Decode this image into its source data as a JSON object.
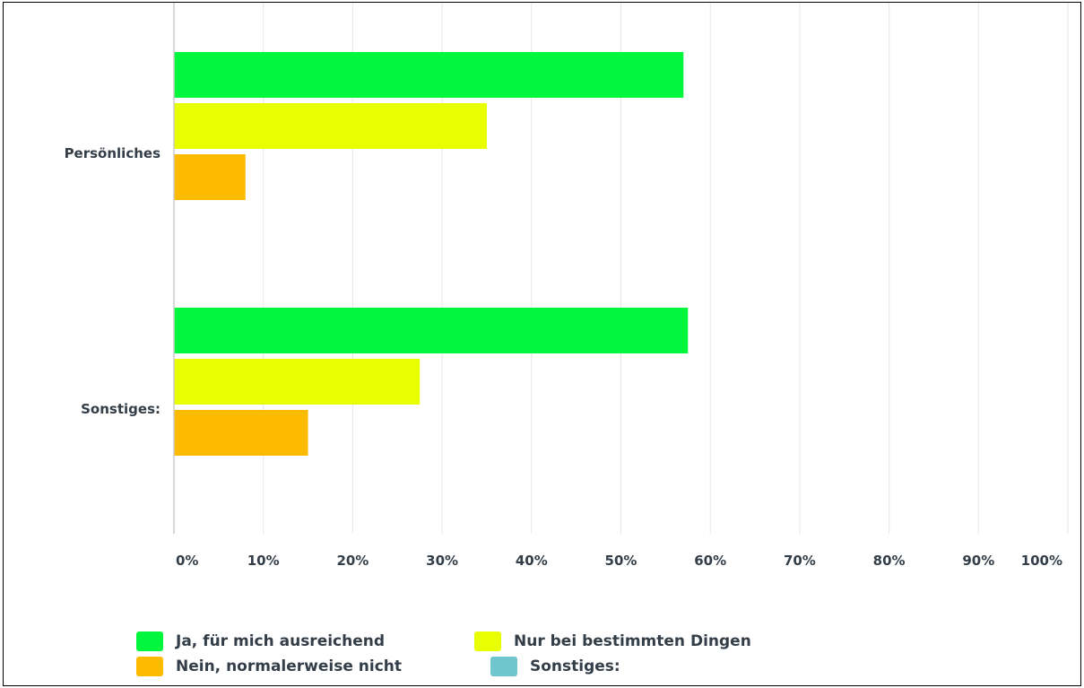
{
  "chart_data": {
    "type": "bar",
    "orientation": "horizontal",
    "categories": [
      "Persönliches",
      "Sonstiges:"
    ],
    "series": [
      {
        "name": "Ja, für mich ausreichend",
        "color": "#00f73e",
        "values": [
          57,
          57.5
        ]
      },
      {
        "name": "Nur bei bestimmten Dingen",
        "color": "#e7ff00",
        "values": [
          35,
          27.5
        ]
      },
      {
        "name": "Nein, normalerweise nicht",
        "color": "#fdbb00",
        "values": [
          8,
          15
        ]
      },
      {
        "name": "Sonstiges:",
        "color": "#6fc6cc",
        "values": [
          0,
          0
        ]
      }
    ],
    "x_ticks": [
      "0%",
      "10%",
      "20%",
      "30%",
      "40%",
      "50%",
      "60%",
      "70%",
      "80%",
      "90%",
      "100%"
    ],
    "xlim": [
      0,
      100
    ],
    "grid": true,
    "legend_position": "bottom"
  }
}
